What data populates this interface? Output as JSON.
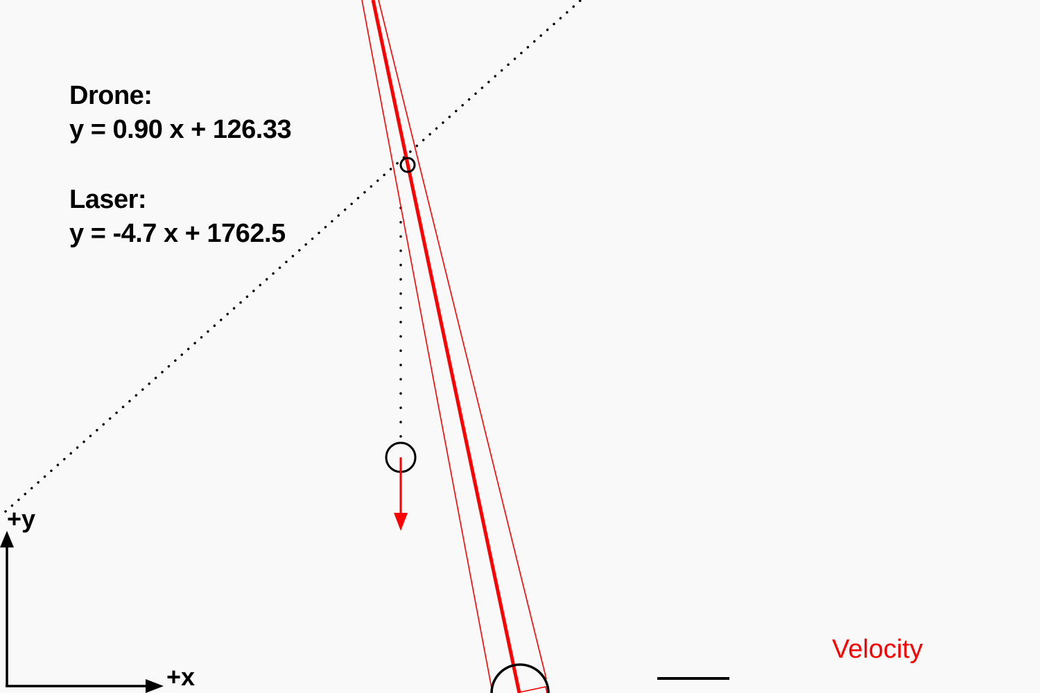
{
  "colors": {
    "background": "#f9f9f9",
    "laser": "#ff0000",
    "velocity": "#ff0000",
    "ink": "#000000"
  },
  "equations": {
    "drone_heading": "Drone:",
    "drone_equation": "y = 0.90 x + 126.33",
    "laser_heading": "Laser:",
    "laser_equation": "y = -4.7 x + 1762.5"
  },
  "axes": {
    "x_label": "+x",
    "y_label": "+y"
  },
  "legend": {
    "velocity_label": "Velocity"
  },
  "icons": {
    "drone": "circle",
    "velocity_arrow": "arrow-down",
    "laser_turret": "semicircle",
    "intercept_point": "small-circle"
  }
}
